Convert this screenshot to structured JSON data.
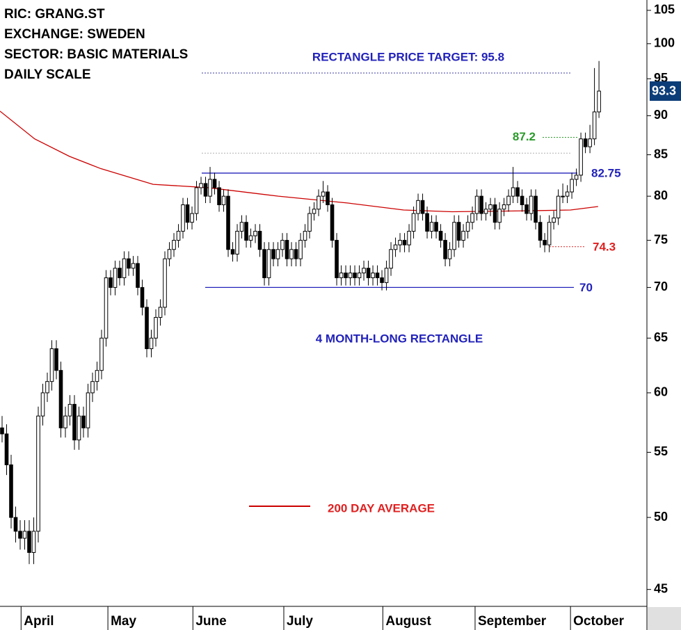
{
  "chart_data": {
    "type": "candlestick",
    "info": [
      "RIC: GRANG.ST",
      "EXCHANGE: SWEDEN",
      "SECTOR: BASIC MATERIALS",
      "DAILY SCALE"
    ],
    "target_label": "RECTANGLE PRICE TARGET: 95.8",
    "pattern_label": "4 MONTH-LONG RECTANGLE",
    "last_price": 93.3,
    "log_scale": true,
    "ylim": [
      43.9,
      106.6
    ],
    "yticks": [
      45,
      50,
      55,
      60,
      65,
      70,
      75,
      80,
      85,
      90,
      95,
      100,
      105
    ],
    "xlim": [
      -0.46,
      142.6
    ],
    "xticks": [
      {
        "value": 4.2,
        "label": "April"
      },
      {
        "value": 23.4,
        "label": "May"
      },
      {
        "value": 42.2,
        "label": "June"
      },
      {
        "value": 62.3,
        "label": "July"
      },
      {
        "value": 84.2,
        "label": "August"
      },
      {
        "value": 104.6,
        "label": "September"
      },
      {
        "value": 125.7,
        "label": "October"
      }
    ],
    "up_color": "#ffffff",
    "down_color": "#000000",
    "ohlc": [
      [
        57,
        58,
        55.8,
        56.5
      ],
      [
        56.5,
        57.3,
        53.2,
        54
      ],
      [
        54,
        54.8,
        49.2,
        50
      ],
      [
        50,
        50.8,
        48.2,
        49
      ],
      [
        49,
        49.8,
        47.7,
        48.5
      ],
      [
        48.5,
        49.8,
        47.7,
        49
      ],
      [
        49,
        49.8,
        46.7,
        47.5
      ],
      [
        47.5,
        50,
        46.7,
        49
      ],
      [
        49,
        58.8,
        48.2,
        58
      ],
      [
        58,
        60.8,
        57.2,
        60
      ],
      [
        60,
        61.8,
        59.2,
        61
      ],
      [
        61,
        64.8,
        60.2,
        64
      ],
      [
        64,
        64.8,
        61.2,
        62
      ],
      [
        62,
        62.8,
        56.2,
        57
      ],
      [
        57,
        58.8,
        56.2,
        58
      ],
      [
        58,
        59.8,
        57.2,
        59
      ],
      [
        59,
        59.8,
        55.2,
        56
      ],
      [
        56,
        58.8,
        55.2,
        58
      ],
      [
        58,
        58.8,
        56.2,
        57
      ],
      [
        57,
        60.8,
        56.2,
        60
      ],
      [
        60,
        61.8,
        59.2,
        61
      ],
      [
        61,
        62.8,
        60.2,
        62
      ],
      [
        62,
        65.8,
        61.2,
        65
      ],
      [
        65,
        71.8,
        64.2,
        71
      ],
      [
        71,
        71.8,
        69.2,
        70
      ],
      [
        70,
        72.8,
        69.2,
        72
      ],
      [
        72,
        72.8,
        70.2,
        71
      ],
      [
        71,
        73.8,
        70.2,
        73
      ],
      [
        73,
        73.8,
        71.2,
        72
      ],
      [
        72,
        73.3,
        71.2,
        72.5
      ],
      [
        72.5,
        73.3,
        69.2,
        70
      ],
      [
        70,
        70.8,
        67.2,
        68
      ],
      [
        68,
        68.8,
        63.2,
        64
      ],
      [
        64,
        65.8,
        63.2,
        65
      ],
      [
        65,
        67.8,
        64.2,
        67
      ],
      [
        67,
        68.8,
        66.2,
        68
      ],
      [
        68,
        73.8,
        67.2,
        73
      ],
      [
        73,
        74.8,
        72.2,
        74
      ],
      [
        74,
        75.8,
        73.2,
        75
      ],
      [
        75,
        76.8,
        74.2,
        76
      ],
      [
        76,
        79.8,
        75.2,
        79
      ],
      [
        79,
        79.8,
        76.2,
        77
      ],
      [
        77,
        78.8,
        76.2,
        78
      ],
      [
        78,
        81.8,
        77.2,
        81
      ],
      [
        81,
        82.3,
        80.2,
        81.5
      ],
      [
        81.5,
        82.3,
        79.2,
        80
      ],
      [
        80,
        83.5,
        79.2,
        82
      ],
      [
        82,
        82.8,
        80.2,
        81
      ],
      [
        81,
        81.8,
        78.2,
        79
      ],
      [
        79,
        80.8,
        78.2,
        80
      ],
      [
        80,
        80.8,
        73.2,
        74
      ],
      [
        74,
        74.8,
        72.7,
        73.5
      ],
      [
        73.5,
        76.8,
        72.7,
        76
      ],
      [
        76,
        77.8,
        75.2,
        77
      ],
      [
        77,
        77.8,
        74.2,
        75
      ],
      [
        75,
        76.3,
        74.2,
        75.5
      ],
      [
        75.5,
        76.8,
        74.7,
        76
      ],
      [
        76,
        76.8,
        73.2,
        74
      ],
      [
        74,
        74.8,
        70.2,
        71
      ],
      [
        71,
        74.8,
        70.2,
        74
      ],
      [
        74,
        74.8,
        72.2,
        73
      ],
      [
        73,
        74.8,
        72.2,
        74
      ],
      [
        74,
        75.8,
        73.2,
        75
      ],
      [
        75,
        75.8,
        72.2,
        73
      ],
      [
        73,
        74.8,
        72.2,
        74
      ],
      [
        74,
        74.8,
        72.2,
        73
      ],
      [
        73,
        75.8,
        72.2,
        75
      ],
      [
        75,
        76.8,
        74.2,
        76
      ],
      [
        76,
        78.8,
        75.2,
        78
      ],
      [
        78,
        79.3,
        77.2,
        78.5
      ],
      [
        78.5,
        80.8,
        77.7,
        80
      ],
      [
        80,
        81.8,
        79.2,
        80.5
      ],
      [
        80.5,
        81.3,
        78.2,
        79
      ],
      [
        79,
        79.8,
        74.2,
        75
      ],
      [
        75,
        75.8,
        70.2,
        71
      ],
      [
        71,
        72.3,
        70.2,
        71.5
      ],
      [
        71.5,
        72.3,
        70.2,
        71
      ],
      [
        71,
        72.3,
        70.2,
        71.5
      ],
      [
        71.5,
        72.3,
        70.2,
        71
      ],
      [
        71,
        72.3,
        70.2,
        71.5
      ],
      [
        71.5,
        72.8,
        70.7,
        72
      ],
      [
        72,
        72.8,
        70.2,
        71
      ],
      [
        71,
        72.3,
        70.2,
        71.5
      ],
      [
        71.5,
        72.3,
        70.2,
        71
      ],
      [
        71,
        71.8,
        69.7,
        70.5
      ],
      [
        70.5,
        72.8,
        69.7,
        72
      ],
      [
        72,
        74.8,
        71.2,
        74
      ],
      [
        74,
        75.3,
        73.2,
        74.5
      ],
      [
        74.5,
        75.8,
        73.7,
        75
      ],
      [
        75,
        75.8,
        73.7,
        74.5
      ],
      [
        74.5,
        76.8,
        73.7,
        76
      ],
      [
        76,
        78.8,
        75.2,
        78
      ],
      [
        78,
        80.3,
        77.2,
        79.5
      ],
      [
        79.5,
        80.3,
        77.2,
        78
      ],
      [
        78,
        78.8,
        75.2,
        76
      ],
      [
        76,
        77.8,
        75.2,
        77
      ],
      [
        77,
        77.8,
        75.2,
        76
      ],
      [
        76,
        76.8,
        74.2,
        75
      ],
      [
        75,
        75.8,
        72.2,
        73
      ],
      [
        73,
        74.8,
        72.2,
        74
      ],
      [
        74,
        77.8,
        73.2,
        77
      ],
      [
        77,
        77.8,
        74.2,
        75
      ],
      [
        75,
        76.8,
        74.2,
        76
      ],
      [
        76,
        77.8,
        75.2,
        77
      ],
      [
        77,
        78.8,
        76.2,
        78
      ],
      [
        78,
        80.8,
        77.2,
        80
      ],
      [
        80,
        80.8,
        77.2,
        78
      ],
      [
        78,
        79.3,
        77.2,
        78.5
      ],
      [
        78.5,
        79.8,
        77.7,
        79
      ],
      [
        79,
        79.8,
        76.2,
        77
      ],
      [
        77,
        79.3,
        76.2,
        78.5
      ],
      [
        78.5,
        79.8,
        77.7,
        79
      ],
      [
        79,
        80.8,
        78.2,
        80
      ],
      [
        80,
        83.5,
        79.2,
        81
      ],
      [
        81,
        81.8,
        79.2,
        80
      ],
      [
        80,
        80.8,
        78.2,
        79
      ],
      [
        79,
        79.8,
        77.2,
        78
      ],
      [
        78,
        80.8,
        77.2,
        80
      ],
      [
        80,
        80.8,
        76.2,
        77
      ],
      [
        77,
        77.8,
        74.2,
        75
      ],
      [
        75,
        75.8,
        73.7,
        74.5
      ],
      [
        74.5,
        77.8,
        73.7,
        77
      ],
      [
        77,
        78.3,
        76.2,
        77.5
      ],
      [
        77.5,
        80.8,
        76.7,
        80
      ],
      [
        80,
        81.5,
        79.2,
        80
      ],
      [
        80,
        81.3,
        79.2,
        80.5
      ],
      [
        80.5,
        82.8,
        79.7,
        82
      ],
      [
        82,
        83.3,
        81.2,
        82.5
      ],
      [
        82.5,
        87.8,
        81.7,
        87
      ],
      [
        87,
        87.8,
        85.2,
        86
      ],
      [
        86,
        88.8,
        85.2,
        87
      ],
      [
        87,
        96.5,
        86.2,
        90.5
      ],
      [
        90.5,
        97.5,
        89.7,
        93.3
      ]
    ],
    "moving_average": {
      "name": "200 DAY AVERAGE",
      "color": "#cc0000",
      "x": [
        -0.46,
        7.2,
        14.9,
        21.8,
        33.4,
        45.7,
        61.1,
        76.5,
        88.8,
        99.5,
        114.9,
        125.7,
        131.8
      ],
      "values": [
        90.6,
        87.0,
        84.8,
        83.3,
        81.4,
        81.0,
        80.0,
        79.2,
        78.4,
        78.2,
        78.3,
        78.4,
        78.8
      ]
    },
    "levels": [
      {
        "value": 95.8,
        "color": "#3a3aa0",
        "style": "dotted"
      },
      {
        "value": 85.2,
        "color": "#b0b0b0",
        "style": "dotted"
      },
      {
        "value": 82.75,
        "color": "#2222bb",
        "style": "solid"
      },
      {
        "value": 87.2,
        "color": "#2a9a2a",
        "style": "dotted"
      },
      {
        "value": 74.3,
        "color": "#e02020",
        "style": "dotted"
      },
      {
        "value": 70,
        "color": "#2222bb",
        "style": "solid"
      }
    ]
  }
}
